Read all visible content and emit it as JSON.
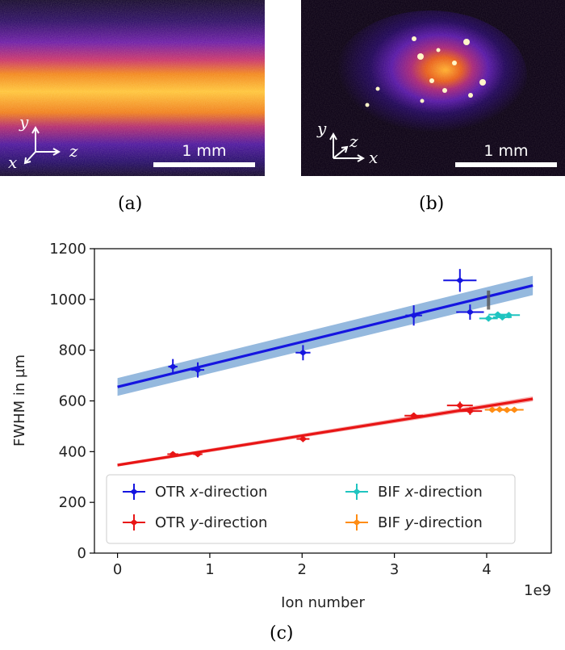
{
  "panel_a": {
    "caption": "(a)",
    "scale_bar_label": "1 mm",
    "axes": {
      "y": "y",
      "z": "z",
      "x": "x"
    }
  },
  "panel_b": {
    "caption": "(b)",
    "scale_bar_label": "1 mm",
    "axes": {
      "y": "y",
      "z": "z",
      "x": "x"
    }
  },
  "panel_c": {
    "caption": "(c)"
  },
  "colors": {
    "otr_x": "#1515e0",
    "otr_y": "#e81515",
    "bif_x": "#1fc4c0",
    "bif_y": "#ff8c12",
    "band_x": "#7aa7d6",
    "band_y": "#f5a3a3"
  },
  "chart_data": {
    "type": "scatter",
    "xlabel": "Ion number",
    "ylabel": "FWHM in µm",
    "x_offset_label": "1e9",
    "xlim": [
      -0.25,
      4.7
    ],
    "ylim": [
      0,
      1200
    ],
    "x_ticks": [
      0,
      1,
      2,
      3,
      4
    ],
    "y_ticks": [
      0,
      200,
      400,
      600,
      800,
      1000,
      1200
    ],
    "grid": false,
    "legend_position": "lower-left",
    "legend_columns": 2,
    "series": [
      {
        "name": "OTR x-direction",
        "color_key": "otr_x",
        "points": [
          {
            "x": 0.6,
            "y": 735,
            "xerr": 0.05,
            "yerr": 30
          },
          {
            "x": 0.87,
            "y": 722,
            "xerr": 0.07,
            "yerr": 30
          },
          {
            "x": 2.01,
            "y": 790,
            "xerr": 0.08,
            "yerr": 30
          },
          {
            "x": 3.21,
            "y": 937,
            "xerr": 0.09,
            "yerr": 40
          },
          {
            "x": 3.71,
            "y": 1075,
            "xerr": 0.18,
            "yerr": 45
          },
          {
            "x": 3.82,
            "y": 950,
            "xerr": 0.15,
            "yerr": 30
          }
        ]
      },
      {
        "name": "OTR y-direction",
        "color_key": "otr_y",
        "points": [
          {
            "x": 0.6,
            "y": 390,
            "xerr": 0.06,
            "yerr": 10
          },
          {
            "x": 0.87,
            "y": 390,
            "xerr": 0.05,
            "yerr": 10
          },
          {
            "x": 2.01,
            "y": 450,
            "xerr": 0.07,
            "yerr": 12
          },
          {
            "x": 3.21,
            "y": 542,
            "xerr": 0.1,
            "yerr": 12
          },
          {
            "x": 3.71,
            "y": 582,
            "xerr": 0.14,
            "yerr": 15
          },
          {
            "x": 3.82,
            "y": 560,
            "xerr": 0.13,
            "yerr": 15
          }
        ]
      },
      {
        "name": "BIF x-direction",
        "color_key": "bif_x",
        "points": [
          {
            "x": 4.02,
            "y": 925,
            "xerr": 0.1,
            "yerr": 12
          },
          {
            "x": 4.12,
            "y": 940,
            "xerr": 0.1,
            "yerr": 12
          },
          {
            "x": 4.17,
            "y": 930,
            "xerr": 0.1,
            "yerr": 12
          },
          {
            "x": 4.24,
            "y": 938,
            "xerr": 0.12,
            "yerr": 12
          }
        ]
      },
      {
        "name": "BIF y-direction",
        "color_key": "bif_y",
        "points": [
          {
            "x": 4.06,
            "y": 565,
            "xerr": 0.08,
            "yerr": 8
          },
          {
            "x": 4.14,
            "y": 566,
            "xerr": 0.08,
            "yerr": 8
          },
          {
            "x": 4.22,
            "y": 564,
            "xerr": 0.08,
            "yerr": 8
          },
          {
            "x": 4.3,
            "y": 565,
            "xerr": 0.1,
            "yerr": 8
          }
        ]
      }
    ],
    "fits": [
      {
        "color_key": "otr_x",
        "band_key": "band_x",
        "x": [
          0,
          4.5
        ],
        "y": [
          655,
          1055
        ],
        "band_halfwidth_ends": [
          35,
          38
        ]
      },
      {
        "color_key": "otr_y",
        "band_key": "band_y",
        "x": [
          0,
          4.5
        ],
        "y": [
          347,
          608
        ],
        "band_halfwidth_ends": [
          6,
          10
        ]
      }
    ],
    "gray_marker": {
      "x": 4.02,
      "y_range": [
        960,
        1035
      ]
    }
  }
}
